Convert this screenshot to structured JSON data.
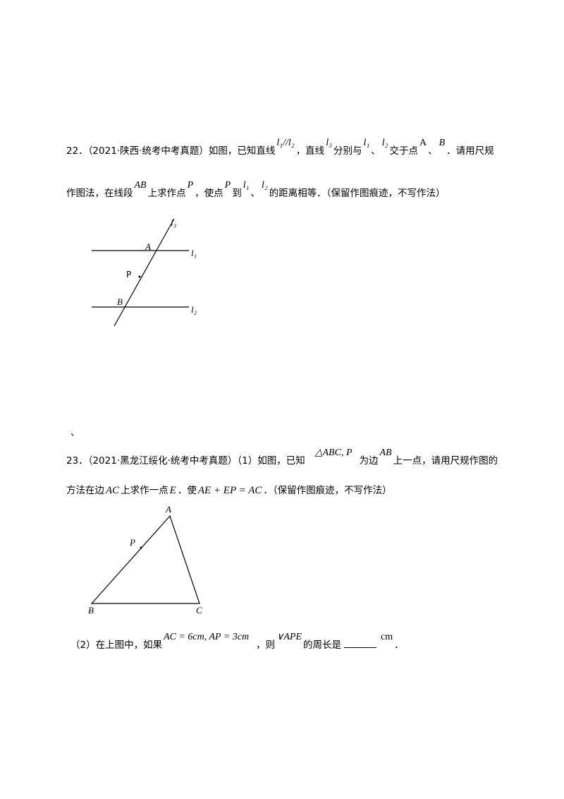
{
  "q22": {
    "number": "22．",
    "source": "（2021·陕西·统考中考真题）",
    "t1": "如图，已知直线",
    "m1": "l₁//l₂",
    "t2": "，直线",
    "m2": "l₃",
    "t3": "分别与",
    "m3": "l₁",
    "t4": "、",
    "m4": "l₂",
    "t5": "交于点",
    "m5": "A",
    "t6": "、",
    "m6": "B",
    "t7": "．请用尺规",
    "t8": "作图法，在线段",
    "m7": "AB",
    "t9": "上求作点",
    "m8": "P",
    "t10": "，使点",
    "m9": "P",
    "t11": "到",
    "m10": "l₁",
    "t12": "、",
    "m11": "l₂",
    "t13": "的距离相等．（保留作图痕迹，不写作法）",
    "figure": {
      "l1": "l₁",
      "l2": "l₂",
      "l3": "l₃",
      "A": "A",
      "B": "B",
      "P": "P"
    }
  },
  "stray_mark": "、",
  "q23": {
    "number": "23．",
    "source": "（2021·黑龙江绥化·统考中考真题）",
    "t1": "（1）如图，已知",
    "m1": "△ABC, P",
    "t2": "为边",
    "m2": "AB",
    "t3": "上一点，请用尺规作图的",
    "t4": "方法在边",
    "m3": "AC",
    "t5": "上求作一点",
    "m4": "E",
    "t6": "．使",
    "m5": "AE + EP = AC",
    "t7": "．（保留作图痕迹，不写作法）",
    "figure": {
      "A": "A",
      "B": "B",
      "C": "C",
      "P": "P"
    },
    "p2_t1": "（2）在上图中，如果",
    "p2_m1": "AC = 6cm, AP = 3cm",
    "p2_t2": "，则",
    "p2_m2": "∨APE",
    "p2_t3": "的周长是",
    "p2_unit": "cm",
    "p2_t4": "．"
  }
}
